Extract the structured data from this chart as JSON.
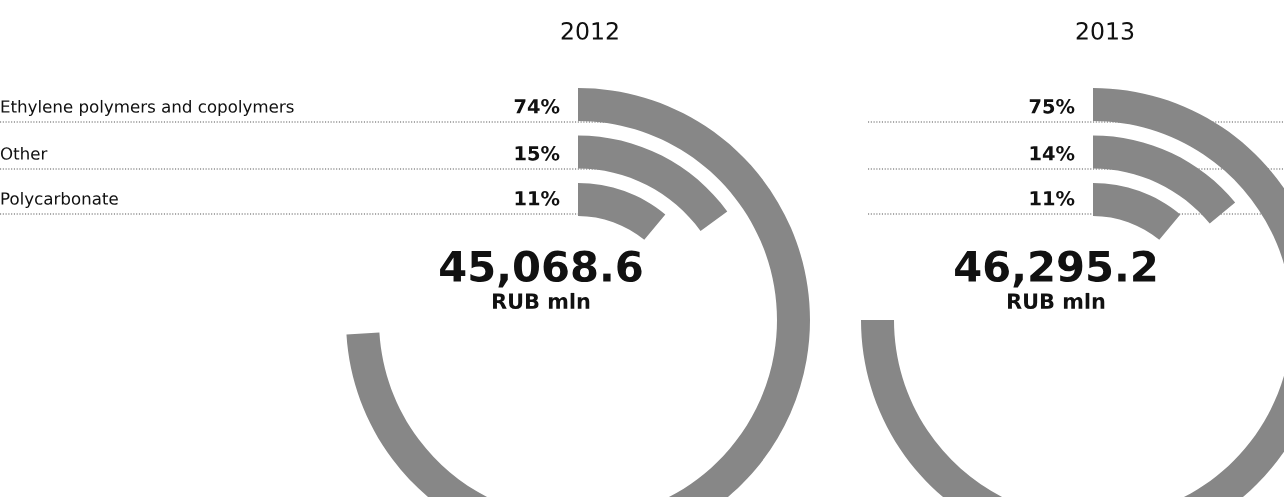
{
  "chart_data": [
    {
      "type": "other",
      "title": "2012",
      "categories": [
        "Ethylene polymers and copolymers",
        "Other",
        "Polycarbonate"
      ],
      "values": [
        74,
        15,
        11
      ],
      "value_labels": [
        "74%",
        "15%",
        "11%"
      ],
      "colors": [
        "#878787",
        "#878787",
        "#878787"
      ],
      "annotations": [
        "45,068.6",
        "RUB mln"
      ]
    },
    {
      "type": "other",
      "title": "2013",
      "categories": [
        null,
        null,
        null
      ],
      "values": [
        75,
        14,
        11
      ],
      "value_labels": [
        "75%",
        "14%",
        "11%"
      ],
      "colors": [
        "#878787",
        "#878787",
        "#878787"
      ],
      "annotations": [
        "46,295.2",
        "RUB mln"
      ]
    }
  ]
}
